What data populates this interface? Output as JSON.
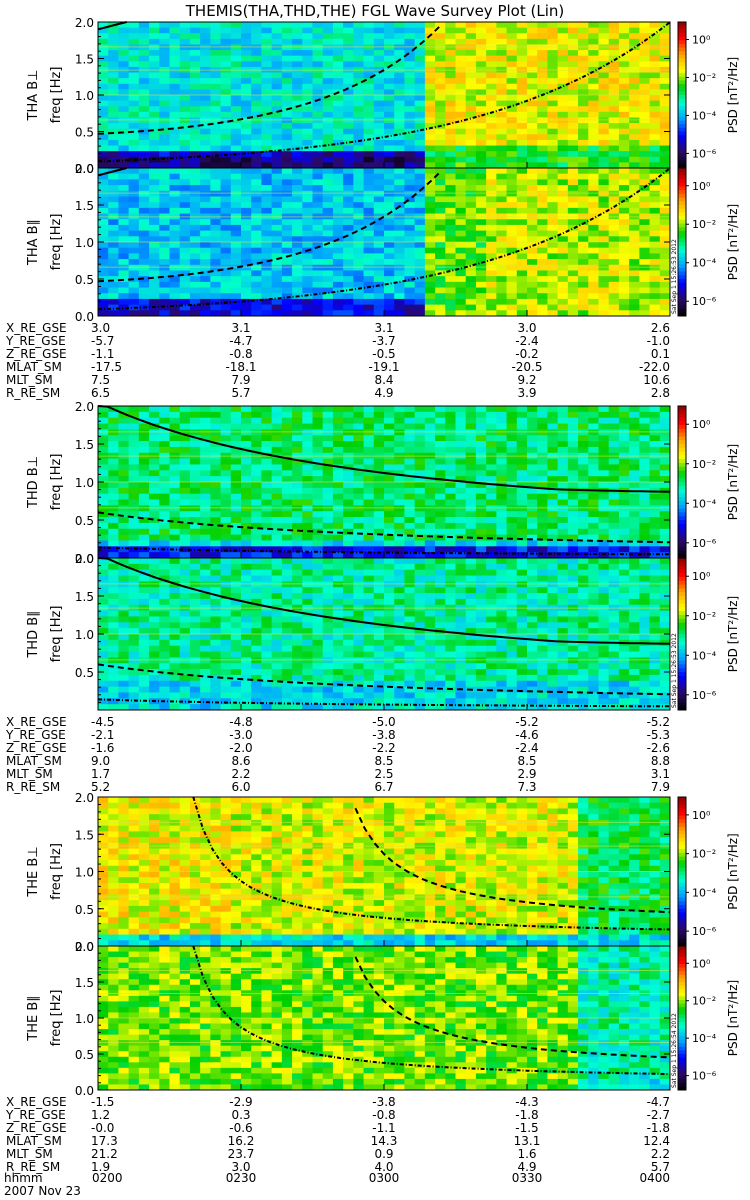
{
  "title": "THEMIS(THA,THD,THE) FGL Wave Survey Plot (Lin)",
  "date_label": "2007 Nov 23",
  "time_row_label": "hhmm",
  "x_ticks": [
    "0200",
    "0230",
    "0300",
    "0330",
    "0400"
  ],
  "colorbar": {
    "label": "PSD [nT²/Hz]",
    "tick_labels": [
      "10⁰",
      "10⁻²",
      "10⁻⁴",
      "10⁻⁶"
    ],
    "stops": [
      "#000000",
      "#2a0a6a",
      "#0000ff",
      "#00a0ff",
      "#00ffd0",
      "#00d000",
      "#ffff00",
      "#ffa000",
      "#ff0000",
      "#8a0000"
    ]
  },
  "stamps": [
    "Sat Sep 1 15:26:53 2012",
    "Sat Sep 1 15:26:53 2012",
    "Sat Sep 1 15:26:54 2012"
  ],
  "chart_data": [
    {
      "type": "heatmap",
      "probe": "THA",
      "panels": [
        {
          "ylabel": "THA B⊥",
          "yunit": "freq [Hz]",
          "yticks": [
            "0.0",
            "0.5",
            "1.0",
            "1.5",
            "2.0"
          ],
          "ylim": [
            0,
            2
          ]
        },
        {
          "ylabel": "THA B∥",
          "yunit": "freq [Hz]",
          "yticks": [
            "0.0",
            "0.5",
            "1.0",
            "1.5",
            "2.0"
          ],
          "ylim": [
            0,
            2
          ]
        }
      ],
      "ephemeris": [
        {
          "label": "X_RE_GSE",
          "values": [
            "3.0",
            "3.1",
            "3.1",
            "3.0",
            "2.6"
          ]
        },
        {
          "label": "Y_RE_GSE",
          "values": [
            "-5.7",
            "-4.7",
            "-3.7",
            "-2.4",
            "-1.0"
          ]
        },
        {
          "label": "Z_RE_GSE",
          "values": [
            "-1.1",
            "-0.8",
            "-0.5",
            "-0.2",
            "0.1"
          ]
        },
        {
          "label": "MLAT_SM",
          "values": [
            "-17.5",
            "-18.1",
            "-19.1",
            "-20.5",
            "-22.0"
          ]
        },
        {
          "label": "MLT_SM",
          "values": [
            "7.5",
            "7.9",
            "8.4",
            "9.2",
            "10.6"
          ]
        },
        {
          "label": "R_RE_SM",
          "values": [
            "6.5",
            "5.7",
            "4.9",
            "3.9",
            "2.8"
          ]
        }
      ]
    },
    {
      "type": "heatmap",
      "probe": "THD",
      "panels": [
        {
          "ylabel": "THD B⊥",
          "yunit": "freq [Hz]",
          "yticks": [
            "0.0",
            "0.5",
            "1.0",
            "1.5",
            "2.0"
          ],
          "ylim": [
            0,
            2
          ]
        },
        {
          "ylabel": "THD B∥",
          "yunit": "freq [Hz]",
          "yticks": [
            "0.5",
            "1.0",
            "1.5",
            "2.0"
          ],
          "ylim": [
            0,
            2
          ]
        }
      ],
      "ephemeris": [
        {
          "label": "X_RE_GSE",
          "values": [
            "-4.5",
            "-4.8",
            "-5.0",
            "-5.2",
            "-5.2"
          ]
        },
        {
          "label": "Y_RE_GSE",
          "values": [
            "-2.1",
            "-3.0",
            "-3.8",
            "-4.6",
            "-5.3"
          ]
        },
        {
          "label": "Z_RE_GSE",
          "values": [
            "-1.6",
            "-2.0",
            "-2.2",
            "-2.4",
            "-2.6"
          ]
        },
        {
          "label": "MLAT_SM",
          "values": [
            "9.0",
            "8.6",
            "8.5",
            "8.5",
            "8.8"
          ]
        },
        {
          "label": "MLT_SM",
          "values": [
            "1.7",
            "2.2",
            "2.5",
            "2.9",
            "3.1"
          ]
        },
        {
          "label": "R_RE_SM",
          "values": [
            "5.2",
            "6.0",
            "6.7",
            "7.3",
            "7.9"
          ]
        }
      ]
    },
    {
      "type": "heatmap",
      "probe": "THE",
      "panels": [
        {
          "ylabel": "THE B⊥",
          "yunit": "freq [Hz]",
          "yticks": [
            "0.0",
            "0.5",
            "1.0",
            "1.5",
            "2.0"
          ],
          "ylim": [
            0,
            2
          ]
        },
        {
          "ylabel": "THE B∥",
          "yunit": "freq [Hz]",
          "yticks": [
            "0.0",
            "0.5",
            "1.0",
            "1.5",
            "2.0"
          ],
          "ylim": [
            0,
            2
          ]
        }
      ],
      "ephemeris": [
        {
          "label": "X_RE_GSE",
          "values": [
            "-1.5",
            "-2.9",
            "-3.8",
            "-4.3",
            "-4.7"
          ]
        },
        {
          "label": "Y_RE_GSE",
          "values": [
            "1.2",
            "0.3",
            "-0.8",
            "-1.8",
            "-2.7"
          ]
        },
        {
          "label": "Z_RE_GSE",
          "values": [
            "-0.0",
            "-0.6",
            "-1.1",
            "-1.5",
            "-1.8"
          ]
        },
        {
          "label": "MLAT_SM",
          "values": [
            "17.3",
            "16.2",
            "14.3",
            "13.1",
            "12.4"
          ]
        },
        {
          "label": "MLT_SM",
          "values": [
            "21.2",
            "23.7",
            "0.9",
            "1.6",
            "2.2"
          ]
        },
        {
          "label": "R_RE_SM",
          "values": [
            "1.9",
            "3.0",
            "4.0",
            "4.9",
            "5.7"
          ]
        }
      ]
    }
  ]
}
